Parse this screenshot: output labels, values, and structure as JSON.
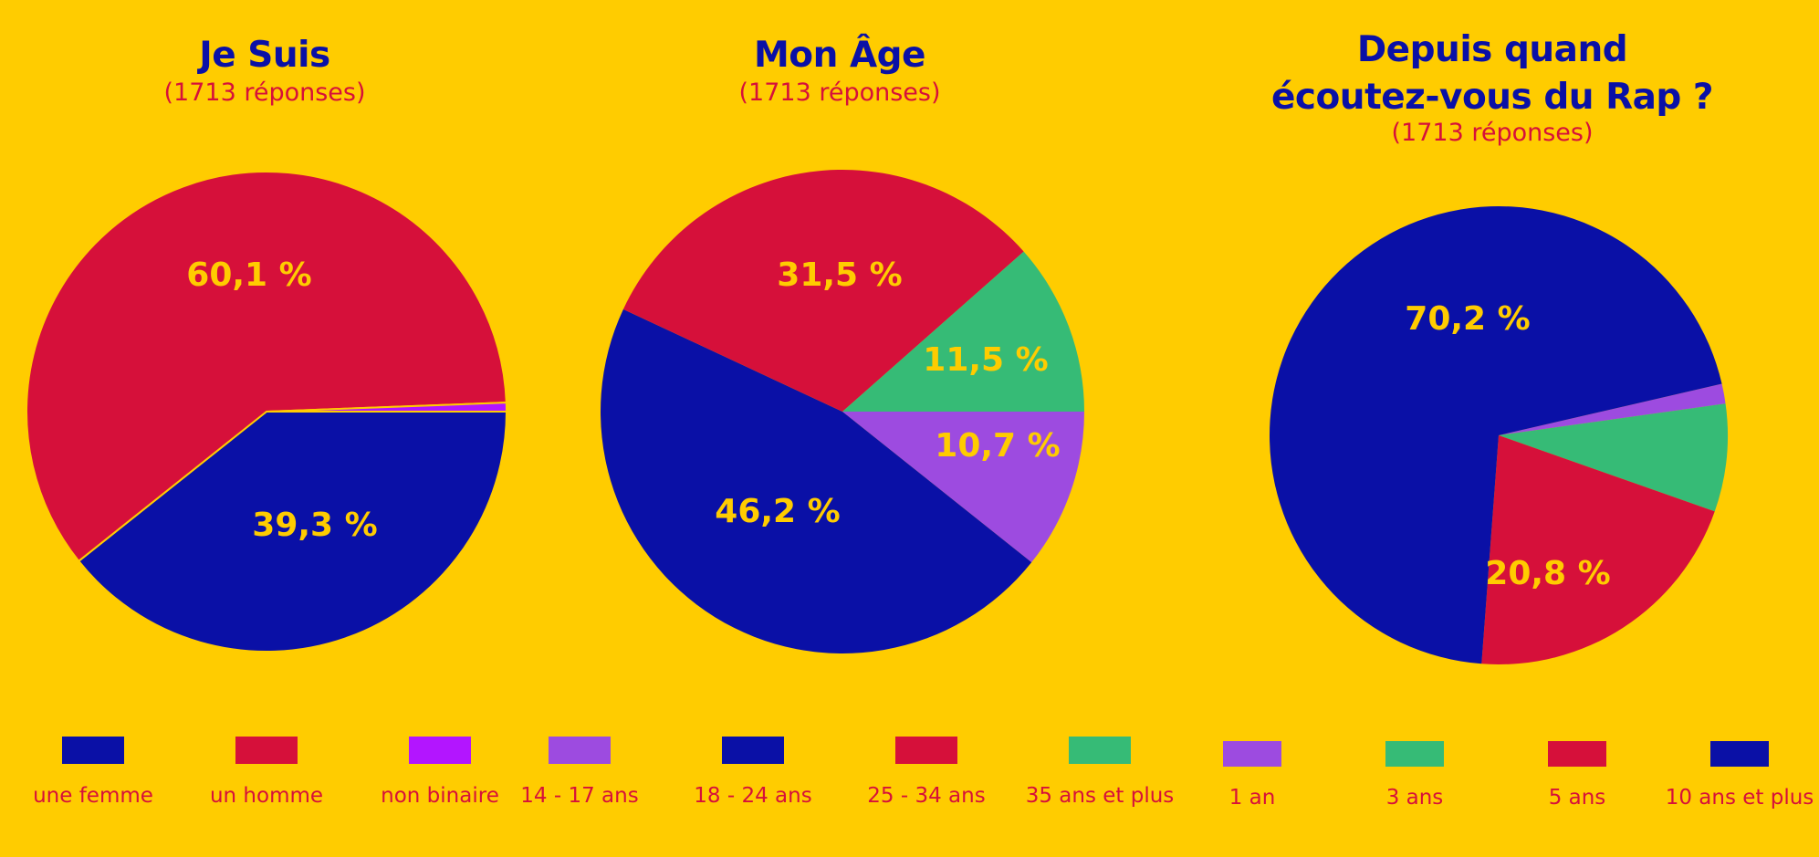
{
  "colors": {
    "background": "#FFCC00",
    "blue": "#0A10A6",
    "red": "#D6103A",
    "magenta": "#B315FF",
    "purple": "#9D4BE0",
    "green": "#36BB76",
    "label": "#FFCC00"
  },
  "chart_data": [
    {
      "type": "pie",
      "title": "Je Suis",
      "subtitle": "(1713 réponses)",
      "slices": [
        {
          "label": "une femme",
          "value": 39.3,
          "display": "39,3 %",
          "color": "#0A10A6"
        },
        {
          "label": "un homme",
          "value": 60.1,
          "display": "60,1 %",
          "color": "#D6103A"
        },
        {
          "label": "non binaire",
          "value": 0.6,
          "display": "",
          "color": "#B315FF"
        }
      ]
    },
    {
      "type": "pie",
      "title": "Mon Âge",
      "subtitle": "(1713 réponses)",
      "slices": [
        {
          "label": "14 - 17 ans",
          "value": 10.7,
          "display": "10,7 %",
          "color": "#9D4BE0"
        },
        {
          "label": "18 - 24 ans",
          "value": 46.2,
          "display": "46,2 %",
          "color": "#0A10A6"
        },
        {
          "label": "25 - 34 ans",
          "value": 31.5,
          "display": "31,5 %",
          "color": "#D6103A"
        },
        {
          "label": "35 ans et plus",
          "value": 11.5,
          "display": "11,5 %",
          "color": "#36BB76"
        }
      ]
    },
    {
      "type": "pie",
      "title": "Depuis quand écoutez-vous du Rap ?",
      "title_lines": [
        "Depuis quand",
        "écoutez-vous du Rap ?"
      ],
      "subtitle": "(1713 réponses)",
      "slices": [
        {
          "label": "1 an",
          "value": 1.4,
          "display": "",
          "color": "#9D4BE0"
        },
        {
          "label": "3 ans",
          "value": 7.6,
          "display": "",
          "color": "#36BB76"
        },
        {
          "label": "5 ans",
          "value": 20.8,
          "display": "20,8 %",
          "color": "#D6103A"
        },
        {
          "label": "10 ans et plus",
          "value": 70.2,
          "display": "70,2 %",
          "color": "#0A10A6"
        }
      ]
    }
  ],
  "legend": [
    {
      "label": "une femme",
      "color": "#0A10A6"
    },
    {
      "label": "un homme",
      "color": "#D6103A"
    },
    {
      "label": "non binaire",
      "color": "#B315FF"
    },
    {
      "label": "14 - 17 ans",
      "color": "#9D4BE0"
    },
    {
      "label": "18 - 24 ans",
      "color": "#0A10A6"
    },
    {
      "label": "25 - 34 ans",
      "color": "#D6103A"
    },
    {
      "label": "35 ans et plus",
      "color": "#36BB76"
    },
    {
      "label": "1 an",
      "color": "#9D4BE0"
    },
    {
      "label": "3 ans",
      "color": "#36BB76"
    },
    {
      "label": "5 ans",
      "color": "#D6103A"
    },
    {
      "label": "10 ans et plus",
      "color": "#0A10A6"
    }
  ]
}
